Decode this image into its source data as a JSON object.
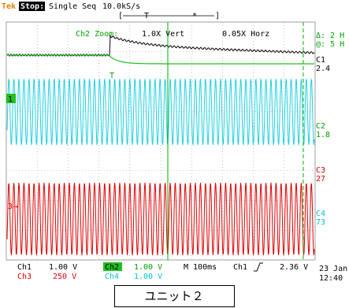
{
  "header": {
    "brand": "Tek",
    "status": "Stop:",
    "mode": "Single Seq",
    "rate": "10.0kS/s",
    "trigger_mark": "T"
  },
  "zoom": {
    "label": "Ch2 Zoom:",
    "vert": "1.0X Vert",
    "horz": "0.05X Horz"
  },
  "markers": {
    "ch1": "1",
    "ch3": "3",
    "trigger": "T"
  },
  "readouts": {
    "delta": "Δ: 2 H",
    "at": "@: 5 H",
    "c1": {
      "label": "C1",
      "value": "2.4"
    },
    "c2": {
      "label": "C2",
      "value": "1.8"
    },
    "c3": {
      "label": "C3",
      "value": "27"
    },
    "c4": {
      "label": "C4",
      "value": "73"
    }
  },
  "footer": {
    "ch1": {
      "label": "Ch1",
      "scale": "1.00 V"
    },
    "ch2": {
      "label": "Ch2",
      "scale": "1.00 V"
    },
    "ch3": {
      "label": "Ch3",
      "scale": "250 V"
    },
    "ch4": {
      "label": "Ch4",
      "scale": "1.00 V"
    },
    "timebase": "M 100ms",
    "trigger_source": "Ch1",
    "trigger_level": "2.36 V",
    "date": "23 Jan",
    "time": "12:40"
  },
  "caption": "ユニット２"
}
